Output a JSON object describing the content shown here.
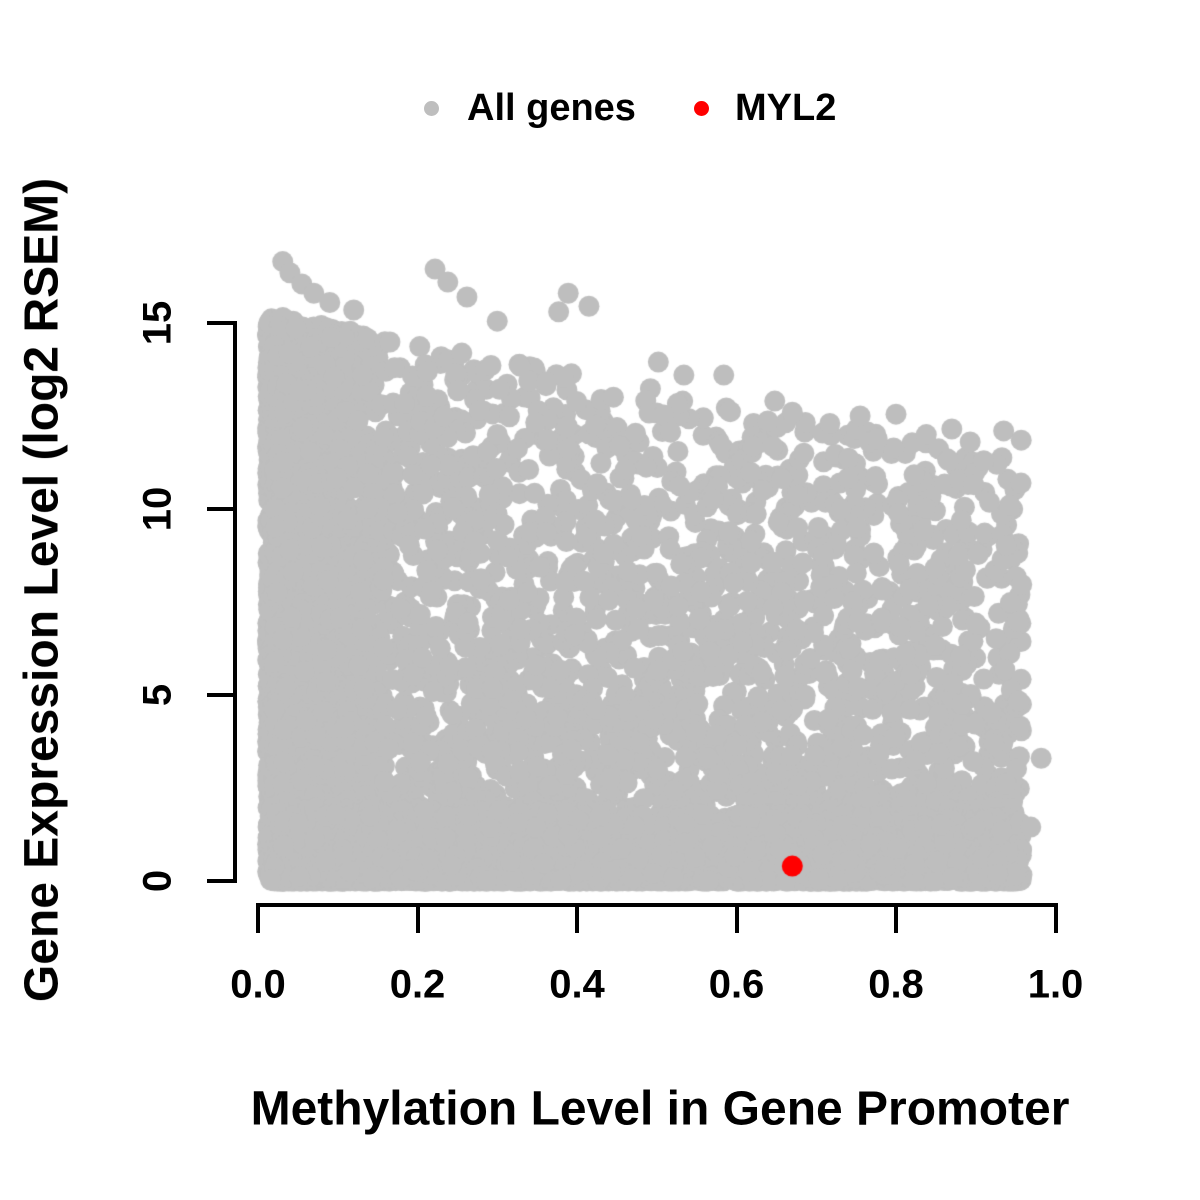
{
  "chart_data": {
    "type": "scatter",
    "title": "",
    "xlabel": "Methylation Level in Gene Promoter",
    "ylabel": "Gene Expression Level (log2 RSEM)",
    "x_axis": {
      "range": [
        0,
        1
      ],
      "tick_values": [
        0,
        0.2,
        0.4,
        0.6,
        0.8,
        1.0
      ],
      "tick_labels": [
        "0.0",
        "0.2",
        "0.4",
        "0.6",
        "0.8",
        "1.0"
      ]
    },
    "y_axis": {
      "range": [
        0,
        16.9
      ],
      "tick_values": [
        0,
        5,
        10,
        15
      ],
      "tick_labels": [
        "0",
        "5",
        "10",
        "15"
      ]
    },
    "grid": false,
    "legend_position": "top-center",
    "point_radius_px": 10.5,
    "legend_marker_radius_px": 7.5,
    "axis_color": "#000000",
    "text_color": "#000000",
    "background_color": "#ffffff",
    "random_seed": 42,
    "series": [
      {
        "name": "All genes",
        "color": "#bebebe",
        "marker": "circle",
        "n_points_approx": 9900,
        "distribution": {
          "description": "Dense cloud of ~10k genes; methylation 0.01-0.96; expression 0-16.7; very dense wall at low methylation spanning 0-15.2; overall upper envelope declines from ~15.3 at x=0 to ~11.5 at x=0.95; density strongly concentrated toward expression 0 (solid band below ~2 across full width).",
          "components": [
            {
              "x_kind": "half_normal",
              "n": 3000,
              "x_min": 0.012,
              "x_max": 0.55,
              "sigma": 0.05,
              "env_base": 15.2,
              "env_slope": 3.0,
              "y_pow": 0.9
            },
            {
              "x_kind": "power_uniform",
              "n": 4300,
              "x_min": 0.02,
              "x_max": 0.958,
              "x_pow": 1.25,
              "env_base": 15.3,
              "env_slope": 4.2,
              "y_pow": 2.2
            },
            {
              "x_kind": "power_uniform",
              "n": 2600,
              "x_min": 0.012,
              "x_max": 0.958,
              "x_pow": 1,
              "env_base": 2.0,
              "env_slope": 0.3,
              "y_pow": 1.5
            }
          ]
        },
        "notable_points": [
          [
            0.031,
            16.65
          ],
          [
            0.04,
            16.35
          ],
          [
            0.055,
            16.05
          ],
          [
            0.07,
            15.8
          ],
          [
            0.09,
            15.55
          ],
          [
            0.12,
            15.35
          ],
          [
            0.222,
            16.45
          ],
          [
            0.238,
            16.1
          ],
          [
            0.262,
            15.7
          ],
          [
            0.3,
            15.05
          ],
          [
            0.377,
            15.3
          ],
          [
            0.389,
            15.8
          ],
          [
            0.415,
            15.45
          ],
          [
            0.502,
            13.95
          ],
          [
            0.534,
            13.6
          ],
          [
            0.584,
            13.6
          ],
          [
            0.648,
            12.9
          ],
          [
            0.67,
            12.6
          ],
          [
            0.717,
            12.3
          ],
          [
            0.755,
            12.5
          ],
          [
            0.8,
            12.55
          ],
          [
            0.838,
            12.0
          ],
          [
            0.87,
            12.15
          ],
          [
            0.893,
            11.8
          ],
          [
            0.91,
            11.3
          ],
          [
            0.935,
            12.1
          ],
          [
            0.957,
            11.85
          ],
          [
            0.982,
            3.3
          ],
          [
            0.969,
            1.45
          ]
        ]
      },
      {
        "name": "MYL2",
        "color": "#ff0000",
        "marker": "circle",
        "points": [
          [
            0.67,
            0.4
          ]
        ]
      }
    ]
  }
}
